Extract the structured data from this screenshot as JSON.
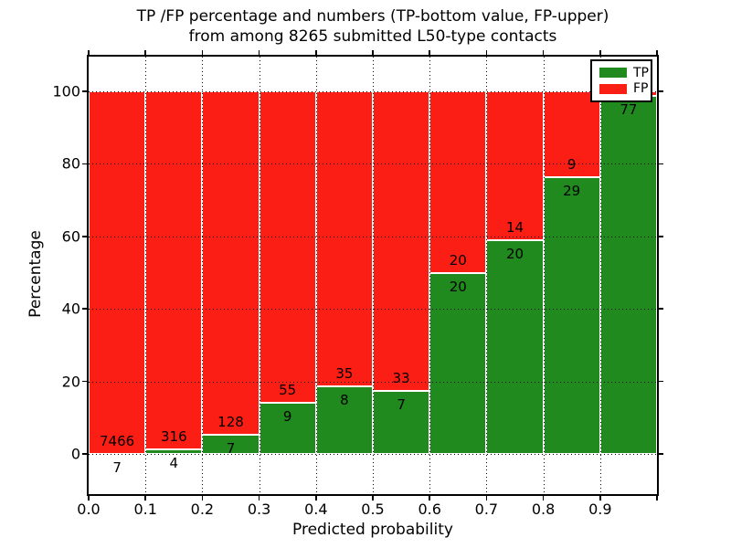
{
  "title": {
    "line1": "TP /FP percentage and numbers (TP-bottom value, FP-upper)",
    "line2": "from among 8265 submitted L50-type contacts"
  },
  "axes": {
    "xlabel": "Predicted probability",
    "ylabel": "Percentage",
    "xtick_labels": [
      "0.0",
      "0.1",
      "0.2",
      "0.3",
      "0.4",
      "0.5",
      "0.6",
      "0.7",
      "0.8",
      "0.9"
    ],
    "ytick_labels": [
      "0",
      "20",
      "40",
      "60",
      "80",
      "100"
    ],
    "ytick_values": [
      0,
      20,
      40,
      60,
      80,
      100
    ]
  },
  "legend": {
    "items": [
      {
        "label": "TP",
        "color": "#218a1e"
      },
      {
        "label": "FP",
        "color": "#fb1e14"
      }
    ],
    "position": "upper right"
  },
  "colors": {
    "tp": "#218a1e",
    "fp": "#fb1e14",
    "bar_edge": "#ffffff",
    "grid": "#000000",
    "background": "#ffffff",
    "text": "#000000"
  },
  "chart_data": {
    "type": "bar",
    "stacked": true,
    "units": "percent of bin",
    "title": "TP /FP percentage and numbers (TP-bottom value, FP-upper) from among 8265 submitted L50-type contacts",
    "xlabel": "Predicted probability",
    "ylabel": "Percentage",
    "xlim": [
      0.0,
      1.0
    ],
    "ylim": [
      -12,
      110
    ],
    "bin_width": 0.1,
    "grid": "dotted",
    "legend_position": "upper right",
    "total_contacts": 8265,
    "series_names": [
      "TP",
      "FP"
    ],
    "bins": [
      {
        "x0": 0.0,
        "x1": 0.1,
        "tp": 7,
        "fp": 7466,
        "tp_pct": 0.09
      },
      {
        "x0": 0.1,
        "x1": 0.2,
        "tp": 4,
        "fp": 316,
        "tp_pct": 1.25
      },
      {
        "x0": 0.2,
        "x1": 0.3,
        "tp": 7,
        "fp": 128,
        "tp_pct": 5.19
      },
      {
        "x0": 0.3,
        "x1": 0.4,
        "tp": 9,
        "fp": 55,
        "tp_pct": 14.06
      },
      {
        "x0": 0.4,
        "x1": 0.5,
        "tp": 8,
        "fp": 35,
        "tp_pct": 18.6
      },
      {
        "x0": 0.5,
        "x1": 0.6,
        "tp": 7,
        "fp": 33,
        "tp_pct": 17.5
      },
      {
        "x0": 0.6,
        "x1": 0.7,
        "tp": 20,
        "fp": 20,
        "tp_pct": 50.0
      },
      {
        "x0": 0.7,
        "x1": 0.8,
        "tp": 20,
        "fp": 14,
        "tp_pct": 58.82
      },
      {
        "x0": 0.8,
        "x1": 0.9,
        "tp": 29,
        "fp": 9,
        "tp_pct": 76.32
      },
      {
        "x0": 0.9,
        "x1": 1.0,
        "tp": 77,
        "fp": 1,
        "tp_pct": 98.72,
        "fp_label_hidden": true
      }
    ]
  }
}
